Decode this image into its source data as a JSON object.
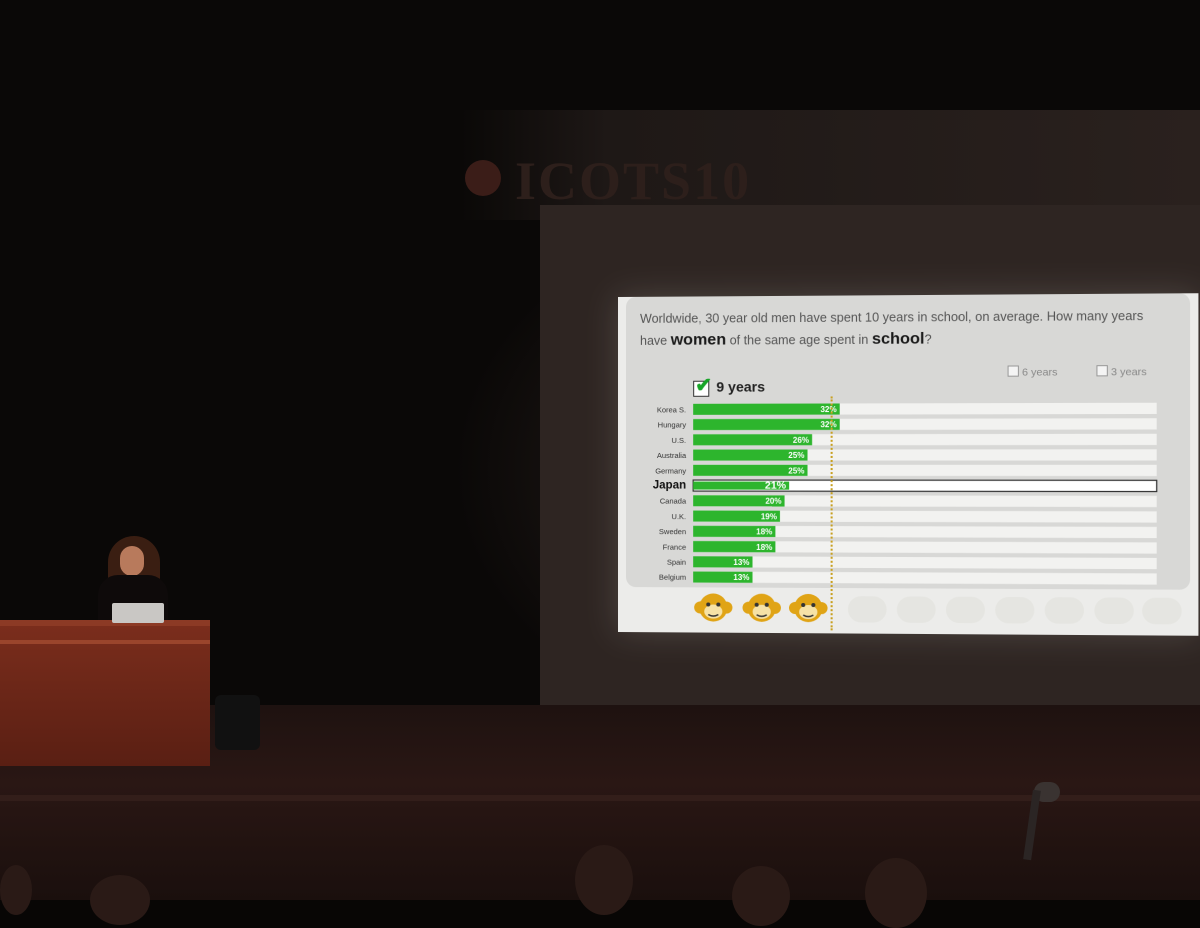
{
  "venue": {
    "banner_text": "ICOTS10",
    "banner_sub1": "",
    "banner_sub2": ""
  },
  "slide": {
    "question_part1": "Worldwide, 30 year old men have spent 10 years in school, on average. How many years have ",
    "question_bold1": "women",
    "question_part2": " of the same age spent in ",
    "question_bold2": "school",
    "question_end": "?",
    "correct_answer": "9 years",
    "option_2": "6 years",
    "option_3": "3 years"
  },
  "chart_data": {
    "type": "bar",
    "orientation": "horizontal",
    "categories": [
      "Korea S.",
      "Hungary",
      "U.S.",
      "Australia",
      "Germany",
      "Japan",
      "Canada",
      "U.K.",
      "Sweden",
      "France",
      "Spain",
      "Belgium"
    ],
    "series": [
      {
        "values": [
          32,
          32,
          26,
          25,
          25,
          21,
          20,
          19,
          18,
          18,
          13,
          13
        ],
        "labels": [
          "32%",
          "32%",
          "26%",
          "25%",
          "25%",
          "21%",
          "20%",
          "19%",
          "18%",
          "18%",
          "13%",
          "13%"
        ],
        "color": "#2db52d"
      }
    ],
    "highlight": "Japan",
    "highlight_color": "#ffffff",
    "track_color": "#f2f2f0",
    "xlim": [
      0,
      100
    ]
  },
  "colors": {
    "green": "#2db52d",
    "monkey": "#e0a416",
    "check": "#17a528"
  }
}
